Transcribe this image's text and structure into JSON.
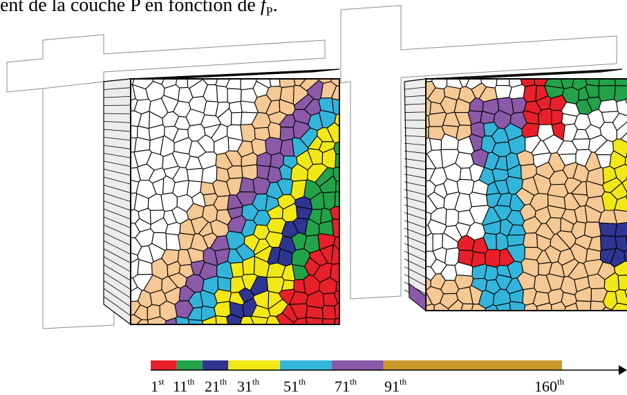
{
  "caption": {
    "text": "ent de la couche P en fonction de ",
    "symbol": "f",
    "subscript": "P",
    "trailing": "."
  },
  "panels": [
    {
      "name": "left-block"
    },
    {
      "name": "right-block"
    }
  ],
  "colors": {
    "red": "#e8202a",
    "green": "#22a34a",
    "navy": "#2e3592",
    "yellow": "#f2e816",
    "cyan": "#33b5db",
    "purple": "#8a5aa8",
    "gold": "#c9972a",
    "tan": "#f5c894",
    "white": "#ffffff",
    "edge": "#000000"
  },
  "scale": {
    "segments": [
      {
        "color": "#e8202a",
        "from": 1,
        "to": 11
      },
      {
        "color": "#22a34a",
        "from": 11,
        "to": 21
      },
      {
        "color": "#2e3592",
        "from": 21,
        "to": 31
      },
      {
        "color": "#f2e816",
        "from": 31,
        "to": 51
      },
      {
        "color": "#33b5db",
        "from": 51,
        "to": 71
      },
      {
        "color": "#8a5aa8",
        "from": 71,
        "to": 91
      },
      {
        "color": "#c9972a",
        "from": 91,
        "to": 160
      }
    ],
    "ticks": [
      {
        "num": "1",
        "sup": "st"
      },
      {
        "num": "11",
        "sup": "th"
      },
      {
        "num": "21",
        "sup": "th"
      },
      {
        "num": "31",
        "sup": "th"
      },
      {
        "num": "51",
        "sup": "th"
      },
      {
        "num": "71",
        "sup": "th"
      },
      {
        "num": "91",
        "sup": "th"
      },
      {
        "num": "160",
        "sup": "th"
      }
    ]
  }
}
